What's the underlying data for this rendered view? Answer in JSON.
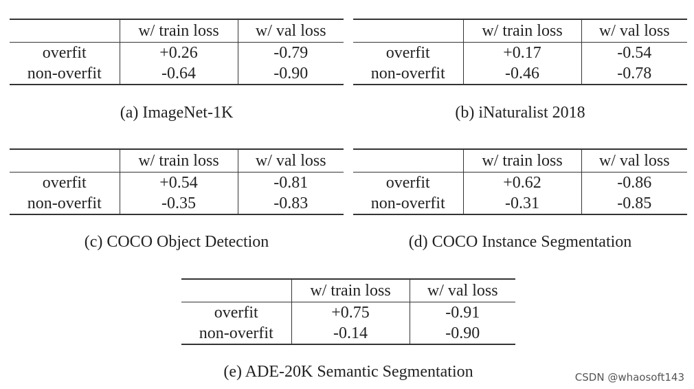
{
  "header": {
    "col1": "w/ train loss",
    "col2": "w/ val loss"
  },
  "row_labels": {
    "r1": "overfit",
    "r2": "non-overfit"
  },
  "tables": [
    {
      "caption": "(a) ImageNet-1K",
      "rows": [
        [
          "+0.26",
          "-0.79"
        ],
        [
          "-0.64",
          "-0.90"
        ]
      ]
    },
    {
      "caption": "(b) iNaturalist 2018",
      "rows": [
        [
          "+0.17",
          "-0.54"
        ],
        [
          "-0.46",
          "-0.78"
        ]
      ]
    },
    {
      "caption": "(c) COCO Object Detection",
      "rows": [
        [
          "+0.54",
          "-0.81"
        ],
        [
          "-0.35",
          "-0.83"
        ]
      ]
    },
    {
      "caption": "(d) COCO Instance Segmentation",
      "rows": [
        [
          "+0.62",
          "-0.86"
        ],
        [
          "-0.31",
          "-0.85"
        ]
      ]
    },
    {
      "caption": "(e) ADE-20K Semantic Segmentation",
      "rows": [
        [
          "+0.75",
          "-0.91"
        ],
        [
          "-0.14",
          "-0.90"
        ]
      ]
    }
  ],
  "watermark": "CSDN @whaosoft143"
}
